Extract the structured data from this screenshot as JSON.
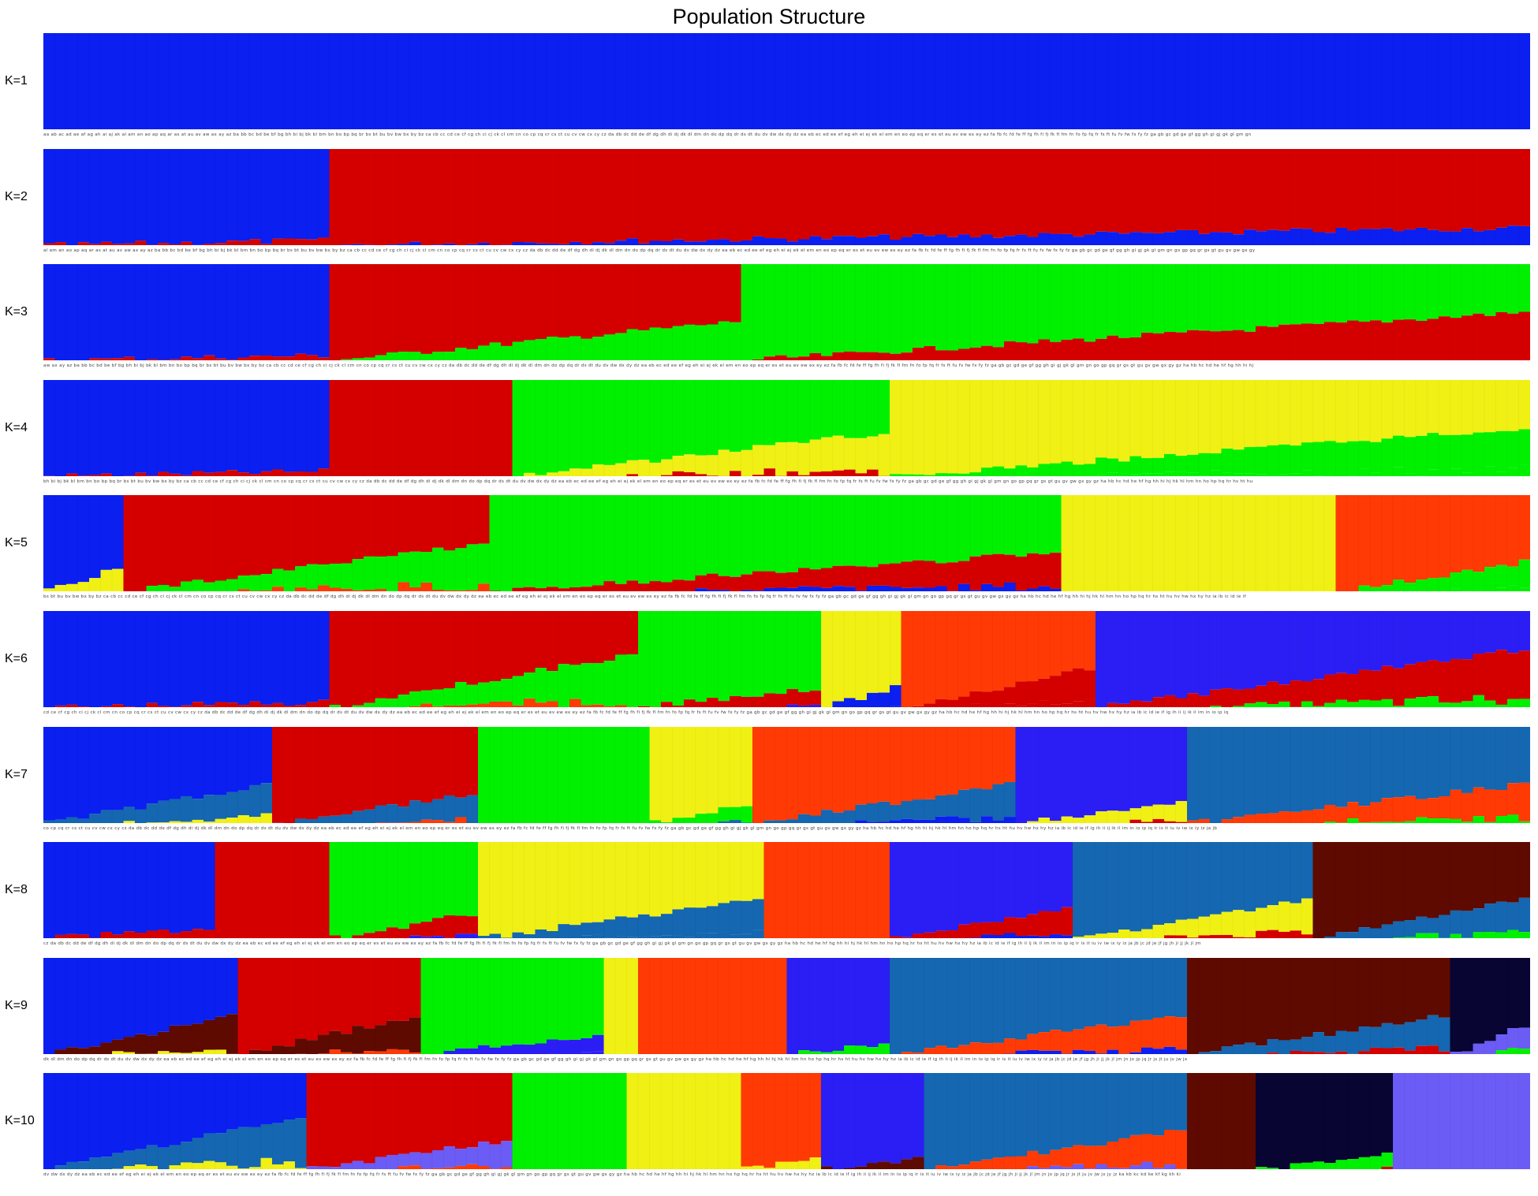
{
  "chart_data": {
    "type": "bar",
    "subtype": "stacked-admixture (STRUCTURE plot)",
    "title": "Population Structure",
    "xlabel": "",
    "ylabel": "",
    "ylim": [
      0,
      1
    ],
    "grid": false,
    "legend": "none",
    "n_individuals": 130,
    "cluster_colors": [
      "#0a1ff0",
      "#d40000",
      "#00f000",
      "#f0f014",
      "#ff3a05",
      "#2a1ef5",
      "#1467b0",
      "#5e0a00",
      "#080533",
      "#6a5cf5"
    ],
    "panels": [
      {
        "label": "K=1",
        "k": 1,
        "groups": [
          {
            "start": 0,
            "end": 130,
            "base": 0,
            "min": 1,
            "sec": null
          }
        ]
      },
      {
        "label": "K=2",
        "k": 2,
        "groups": [
          {
            "start": 0,
            "end": 25,
            "base": 0,
            "min": 0.95,
            "sec": 1
          },
          {
            "start": 25,
            "end": 130,
            "base": 1,
            "min": 0.82,
            "sec": 0
          }
        ]
      },
      {
        "label": "K=3",
        "k": 3,
        "groups": [
          {
            "start": 0,
            "end": 25,
            "base": 0,
            "min": 0.95,
            "sec": 1
          },
          {
            "start": 25,
            "end": 61,
            "base": 1,
            "min": 0.6,
            "sec": 2
          },
          {
            "start": 61,
            "end": 130,
            "base": 2,
            "min": 0.5,
            "sec": 1
          }
        ]
      },
      {
        "label": "K=4",
        "k": 4,
        "groups": [
          {
            "start": 0,
            "end": 25,
            "base": 0,
            "min": 0.95,
            "sec": 1
          },
          {
            "start": 25,
            "end": 41,
            "base": 1,
            "min": 1,
            "sec": 3
          },
          {
            "start": 41,
            "end": 74,
            "base": 2,
            "min": 0.55,
            "sec": 3
          },
          {
            "start": 74,
            "end": 130,
            "base": 3,
            "min": 0.5,
            "sec": 2
          }
        ]
      },
      {
        "label": "K=5",
        "k": 5,
        "groups": [
          {
            "start": 0,
            "end": 7,
            "base": 0,
            "min": 0.75,
            "sec": 3
          },
          {
            "start": 7,
            "end": 39,
            "base": 1,
            "min": 0.5,
            "sec": 2
          },
          {
            "start": 39,
            "end": 89,
            "base": 2,
            "min": 0.6,
            "sec": 1
          },
          {
            "start": 89,
            "end": 113,
            "base": 3,
            "min": 1,
            "sec": null
          },
          {
            "start": 113,
            "end": 130,
            "base": 4,
            "min": 0.7,
            "sec": 2
          }
        ]
      },
      {
        "label": "K=6",
        "k": 6,
        "groups": [
          {
            "start": 0,
            "end": 25,
            "base": 0,
            "min": 0.95,
            "sec": 1
          },
          {
            "start": 25,
            "end": 52,
            "base": 1,
            "min": 0.45,
            "sec": 2
          },
          {
            "start": 52,
            "end": 68,
            "base": 2,
            "min": 0.8,
            "sec": 1
          },
          {
            "start": 68,
            "end": 75,
            "base": 3,
            "min": 0.8,
            "sec": 0
          },
          {
            "start": 75,
            "end": 92,
            "base": 4,
            "min": 0.6,
            "sec": 1
          },
          {
            "start": 92,
            "end": 130,
            "base": 5,
            "min": 0.4,
            "sec": 1
          }
        ]
      },
      {
        "label": "K=7",
        "k": 7,
        "groups": [
          {
            "start": 0,
            "end": 20,
            "base": 0,
            "min": 0.6,
            "sec": 6
          },
          {
            "start": 20,
            "end": 38,
            "base": 1,
            "min": 0.7,
            "sec": 6
          },
          {
            "start": 38,
            "end": 53,
            "base": 2,
            "min": 1,
            "sec": null
          },
          {
            "start": 53,
            "end": 62,
            "base": 3,
            "min": 0.8,
            "sec": 2
          },
          {
            "start": 62,
            "end": 85,
            "base": 4,
            "min": 0.6,
            "sec": 6
          },
          {
            "start": 85,
            "end": 100,
            "base": 5,
            "min": 0.8,
            "sec": 3
          },
          {
            "start": 100,
            "end": 130,
            "base": 6,
            "min": 0.6,
            "sec": 4
          }
        ]
      },
      {
        "label": "K=8",
        "k": 8,
        "groups": [
          {
            "start": 0,
            "end": 15,
            "base": 0,
            "min": 0.9,
            "sec": 1
          },
          {
            "start": 15,
            "end": 25,
            "base": 1,
            "min": 1,
            "sec": null
          },
          {
            "start": 25,
            "end": 38,
            "base": 2,
            "min": 0.75,
            "sec": 1
          },
          {
            "start": 38,
            "end": 63,
            "base": 3,
            "min": 0.6,
            "sec": 6
          },
          {
            "start": 63,
            "end": 74,
            "base": 4,
            "min": 1,
            "sec": null
          },
          {
            "start": 74,
            "end": 90,
            "base": 5,
            "min": 0.7,
            "sec": 1
          },
          {
            "start": 90,
            "end": 111,
            "base": 6,
            "min": 0.6,
            "sec": 3
          },
          {
            "start": 111,
            "end": 130,
            "base": 7,
            "min": 0.6,
            "sec": 6
          }
        ]
      },
      {
        "label": "K=9",
        "k": 9,
        "groups": [
          {
            "start": 0,
            "end": 17,
            "base": 0,
            "min": 0.6,
            "sec": 7
          },
          {
            "start": 17,
            "end": 33,
            "base": 1,
            "min": 0.6,
            "sec": 7
          },
          {
            "start": 33,
            "end": 49,
            "base": 2,
            "min": 0.8,
            "sec": 5
          },
          {
            "start": 49,
            "end": 52,
            "base": 3,
            "min": 1,
            "sec": null
          },
          {
            "start": 52,
            "end": 65,
            "base": 4,
            "min": 1,
            "sec": null
          },
          {
            "start": 65,
            "end": 74,
            "base": 5,
            "min": 0.9,
            "sec": 2
          },
          {
            "start": 74,
            "end": 100,
            "base": 6,
            "min": 0.6,
            "sec": 4
          },
          {
            "start": 100,
            "end": 123,
            "base": 7,
            "min": 0.6,
            "sec": 6
          },
          {
            "start": 123,
            "end": 130,
            "base": 8,
            "min": 0.7,
            "sec": 9
          }
        ]
      },
      {
        "label": "K=10",
        "k": 10,
        "groups": [
          {
            "start": 0,
            "end": 23,
            "base": 0,
            "min": 0.45,
            "sec": 6
          },
          {
            "start": 23,
            "end": 41,
            "base": 1,
            "min": 0.7,
            "sec": 9
          },
          {
            "start": 41,
            "end": 51,
            "base": 2,
            "min": 1,
            "sec": null
          },
          {
            "start": 51,
            "end": 61,
            "base": 3,
            "min": 1,
            "sec": null
          },
          {
            "start": 61,
            "end": 68,
            "base": 4,
            "min": 0.9,
            "sec": 3
          },
          {
            "start": 68,
            "end": 77,
            "base": 5,
            "min": 0.9,
            "sec": 7
          },
          {
            "start": 77,
            "end": 100,
            "base": 6,
            "min": 0.6,
            "sec": 4
          },
          {
            "start": 100,
            "end": 106,
            "base": 7,
            "min": 1,
            "sec": null
          },
          {
            "start": 106,
            "end": 118,
            "base": 8,
            "min": 0.85,
            "sec": 2
          },
          {
            "start": 118,
            "end": 130,
            "base": 9,
            "min": 1,
            "sec": null
          }
        ]
      }
    ]
  }
}
